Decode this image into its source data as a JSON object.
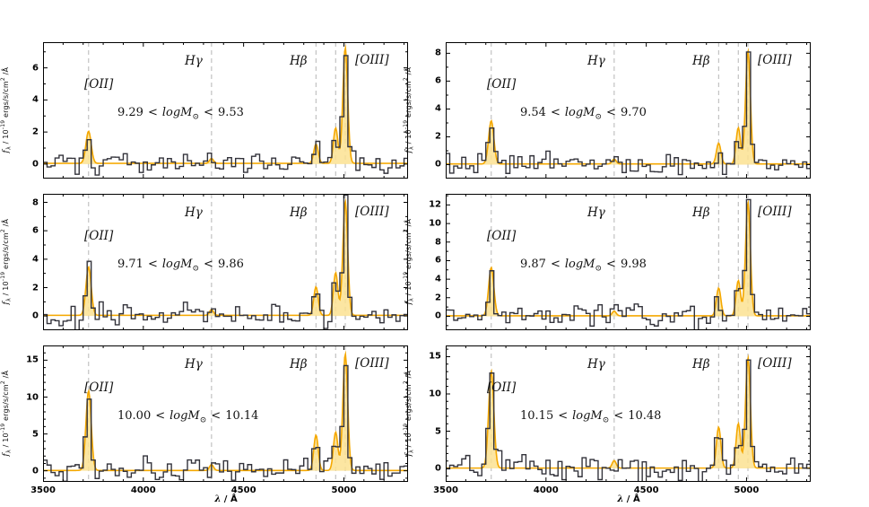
{
  "figure": {
    "lt": "<",
    "logm": "logM",
    "sun": "⊙",
    "xlabel": {
      "sym": "λ",
      "rest": " / Å"
    },
    "ylabel": {
      "sym": "f",
      "sub": "λ",
      "mid": " / 10",
      "sup": "-19",
      "units": " ergs/s/cm",
      "sup2": "2",
      "tail": " /Å"
    },
    "line_labels": {
      "oii": "[OII]",
      "hgamma": "Hγ",
      "hbeta": "Hβ",
      "oiii": "[OIII]"
    }
  },
  "chart_data": {
    "type": "line",
    "description": "Six stacked galaxy spectra in stellar-mass bins: observed spectrum as dark step histogram, orange best-fit emission-line model with shaded fill, dashed vertical markers at emission-line wavelengths.",
    "xlim": [
      3500,
      5320
    ],
    "x_ticks": [
      3500,
      4000,
      4500,
      5000
    ],
    "xlabel": "λ / Å",
    "ylabel": "f_λ / 10^-19 ergs/s/cm^2 /Å",
    "bin_width": 20,
    "continuum": 0.05,
    "colors": {
      "observed": "#33333b",
      "model": "#f5a800",
      "model_fill": "#fbe292",
      "dashed_line": "#bdbdbd",
      "axis": "#000000"
    },
    "emission_lines": [
      {
        "key": "oii",
        "label": "[OII]",
        "wavelength": 3727,
        "sigma": 13
      },
      {
        "key": "hgamma",
        "label": "Hγ",
        "wavelength": 4340,
        "sigma": 10
      },
      {
        "key": "hbeta",
        "label": "Hβ",
        "wavelength": 4861,
        "sigma": 11
      },
      {
        "key": "oiii_4959",
        "label": "[OIII]λ4959",
        "wavelength": 4959,
        "sigma": 11
      },
      {
        "key": "oiii_5007",
        "label": "[OIII]λ5007",
        "wavelength": 5007,
        "sigma": 12
      }
    ],
    "panels": [
      {
        "mass_lo": "9.29",
        "mass_hi": "9.53",
        "ylim": [
          -0.9,
          7.6
        ],
        "yticks": [
          0,
          2,
          4,
          6
        ],
        "peaks": {
          "oii": 2.0,
          "hgamma": 0.3,
          "hbeta": 1.2,
          "oiii_4959": 2.2,
          "oiii_5007": 7.2
        },
        "noise_sigma": 0.33,
        "seed": 101
      },
      {
        "mass_lo": "9.54",
        "mass_hi": "9.70",
        "ylim": [
          -1.0,
          8.8
        ],
        "yticks": [
          0,
          2,
          4,
          6,
          8
        ],
        "peaks": {
          "oii": 3.1,
          "hgamma": 0.35,
          "hbeta": 1.5,
          "oiii_4959": 2.6,
          "oiii_5007": 8.1
        },
        "noise_sigma": 0.38,
        "seed": 202
      },
      {
        "mass_lo": "9.71",
        "mass_hi": "9.86",
        "ylim": [
          -1.0,
          8.6
        ],
        "yticks": [
          0,
          2,
          4,
          6,
          8
        ],
        "peaks": {
          "oii": 3.4,
          "hgamma": 0.4,
          "hbeta": 2.0,
          "oiii_4959": 3.0,
          "oiii_5007": 8.0
        },
        "noise_sigma": 0.4,
        "seed": 303
      },
      {
        "mass_lo": "9.87",
        "mass_hi": "9.98",
        "ylim": [
          -1.5,
          13.2
        ],
        "yticks": [
          0,
          2,
          4,
          6,
          8,
          10,
          12
        ],
        "peaks": {
          "oii": 5.2,
          "hgamma": 0.5,
          "hbeta": 3.0,
          "oiii_4959": 3.8,
          "oiii_5007": 12.2
        },
        "noise_sigma": 0.55,
        "seed": 404
      },
      {
        "mass_lo": "10.00",
        "mass_hi": "10.14",
        "ylim": [
          -1.5,
          17.0
        ],
        "yticks": [
          0,
          5,
          10,
          15
        ],
        "peaks": {
          "oii": 10.8,
          "hgamma": 0.8,
          "hbeta": 4.8,
          "oiii_4959": 5.2,
          "oiii_5007": 15.8
        },
        "noise_sigma": 0.8,
        "seed": 505
      },
      {
        "mass_lo": "10.15",
        "mass_hi": "10.48",
        "ylim": [
          -1.8,
          16.5
        ],
        "yticks": [
          0,
          5,
          10,
          15
        ],
        "peaks": {
          "oii": 13.0,
          "hgamma": 1.0,
          "hbeta": 5.5,
          "oiii_4959": 6.0,
          "oiii_5007": 14.8
        },
        "noise_sigma": 0.9,
        "seed": 606
      }
    ]
  }
}
